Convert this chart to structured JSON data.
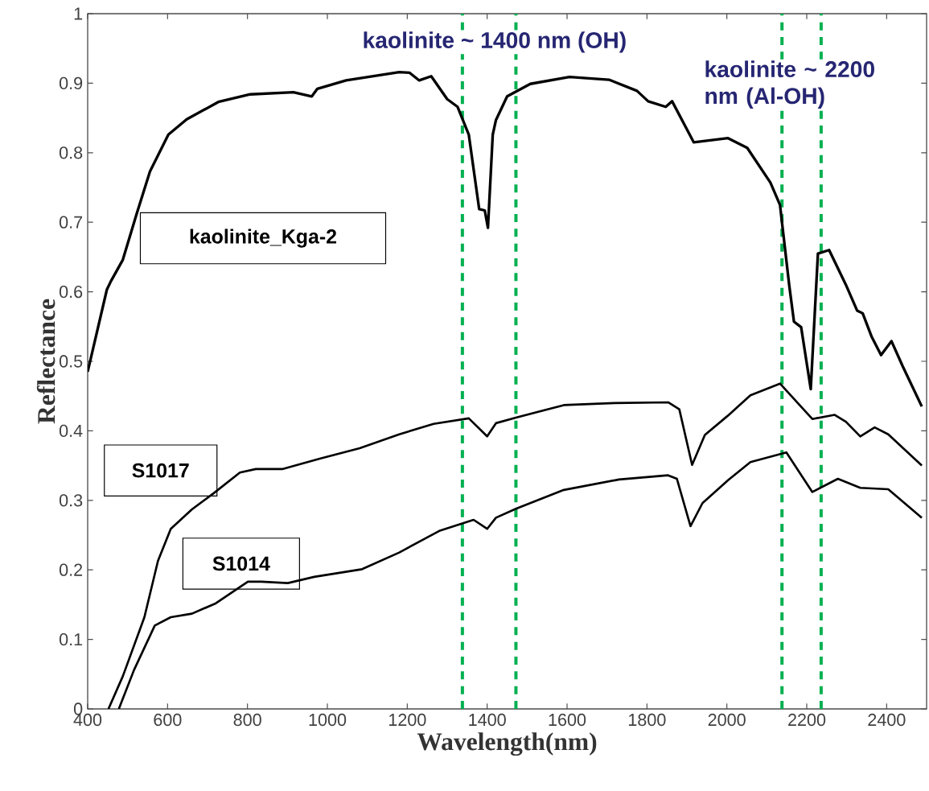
{
  "chart_data": {
    "type": "line",
    "xlabel": "Wavelength(nm)",
    "ylabel": "Reflectance",
    "xlim": [
      400,
      2500
    ],
    "ylim": [
      0,
      1
    ],
    "xticks": [
      400,
      600,
      800,
      1000,
      1200,
      1400,
      1600,
      1800,
      2000,
      2200,
      2400
    ],
    "yticks": [
      0,
      0.1,
      0.2,
      0.3,
      0.4,
      0.5,
      0.6,
      0.7,
      0.8,
      0.9,
      1
    ],
    "grid": false,
    "line_style": "solid",
    "marker": "none",
    "series": [
      {
        "name": "kaolinite_Kga-2",
        "color": "#000000",
        "x": [
          400,
          448,
          458,
          488,
          522,
          556,
          602,
          648,
          727,
          807,
          915,
          961,
          975,
          1047,
          1180,
          1206,
          1230,
          1260,
          1300,
          1326,
          1354,
          1380,
          1394,
          1402,
          1414,
          1422,
          1450,
          1508,
          1606,
          1705,
          1775,
          1803,
          1847,
          1863,
          1917,
          2003,
          2051,
          2109,
          2133,
          2156,
          2168,
          2186,
          2210,
          2228,
          2256,
          2298,
          2326,
          2340,
          2362,
          2386,
          2412,
          2440,
          2488
        ],
        "values": [
          0.485,
          0.603,
          0.615,
          0.646,
          0.711,
          0.773,
          0.826,
          0.848,
          0.873,
          0.884,
          0.887,
          0.881,
          0.892,
          0.904,
          0.916,
          0.915,
          0.904,
          0.91,
          0.877,
          0.866,
          0.826,
          0.719,
          0.717,
          0.692,
          0.826,
          0.847,
          0.881,
          0.899,
          0.909,
          0.905,
          0.889,
          0.874,
          0.866,
          0.874,
          0.815,
          0.821,
          0.807,
          0.757,
          0.725,
          0.61,
          0.557,
          0.549,
          0.46,
          0.655,
          0.66,
          0.61,
          0.573,
          0.569,
          0.536,
          0.509,
          0.529,
          0.493,
          0.435
        ]
      },
      {
        "name": "S1017",
        "color": "#000000",
        "x": [
          452,
          488,
          542,
          576,
          608,
          661,
          715,
          781,
          821,
          887,
          981,
          1081,
          1180,
          1266,
          1354,
          1400,
          1422,
          1472,
          1592,
          1719,
          1853,
          1881,
          1913,
          1945,
          2003,
          2059,
          2133,
          2214,
          2270,
          2298,
          2334,
          2370,
          2404,
          2488
        ],
        "values": [
          0.0,
          0.047,
          0.132,
          0.213,
          0.259,
          0.287,
          0.31,
          0.34,
          0.345,
          0.345,
          0.36,
          0.375,
          0.395,
          0.41,
          0.418,
          0.392,
          0.411,
          0.419,
          0.437,
          0.44,
          0.441,
          0.431,
          0.351,
          0.394,
          0.422,
          0.451,
          0.468,
          0.417,
          0.423,
          0.413,
          0.392,
          0.405,
          0.395,
          0.35
        ]
      },
      {
        "name": "S1014",
        "color": "#000000",
        "x": [
          478,
          516,
          568,
          608,
          661,
          721,
          801,
          835,
          901,
          967,
          1087,
          1180,
          1280,
          1366,
          1400,
          1422,
          1472,
          1592,
          1730,
          1853,
          1875,
          1909,
          1939,
          2003,
          2059,
          2149,
          2214,
          2278,
          2334,
          2404,
          2488
        ],
        "values": [
          0.0,
          0.056,
          0.12,
          0.132,
          0.137,
          0.152,
          0.183,
          0.183,
          0.181,
          0.19,
          0.201,
          0.225,
          0.256,
          0.272,
          0.259,
          0.275,
          0.288,
          0.315,
          0.33,
          0.336,
          0.331,
          0.263,
          0.296,
          0.329,
          0.355,
          0.369,
          0.312,
          0.331,
          0.318,
          0.316,
          0.275
        ]
      }
    ],
    "ref_lines": [
      {
        "axis": "x",
        "value": 1338,
        "color": "#00b050",
        "line_style": "dashed"
      },
      {
        "axis": "x",
        "value": 1472,
        "color": "#00b050",
        "line_style": "dashed"
      },
      {
        "axis": "x",
        "value": 2138,
        "color": "#00b050",
        "line_style": "dashed"
      },
      {
        "axis": "x",
        "value": 2236,
        "color": "#00b050",
        "line_style": "dashed"
      }
    ],
    "annotations": [
      "kaolinite ~ 1400 nm (OH)",
      "kaolinite ~ 2200 nm (Al-OH)"
    ]
  }
}
